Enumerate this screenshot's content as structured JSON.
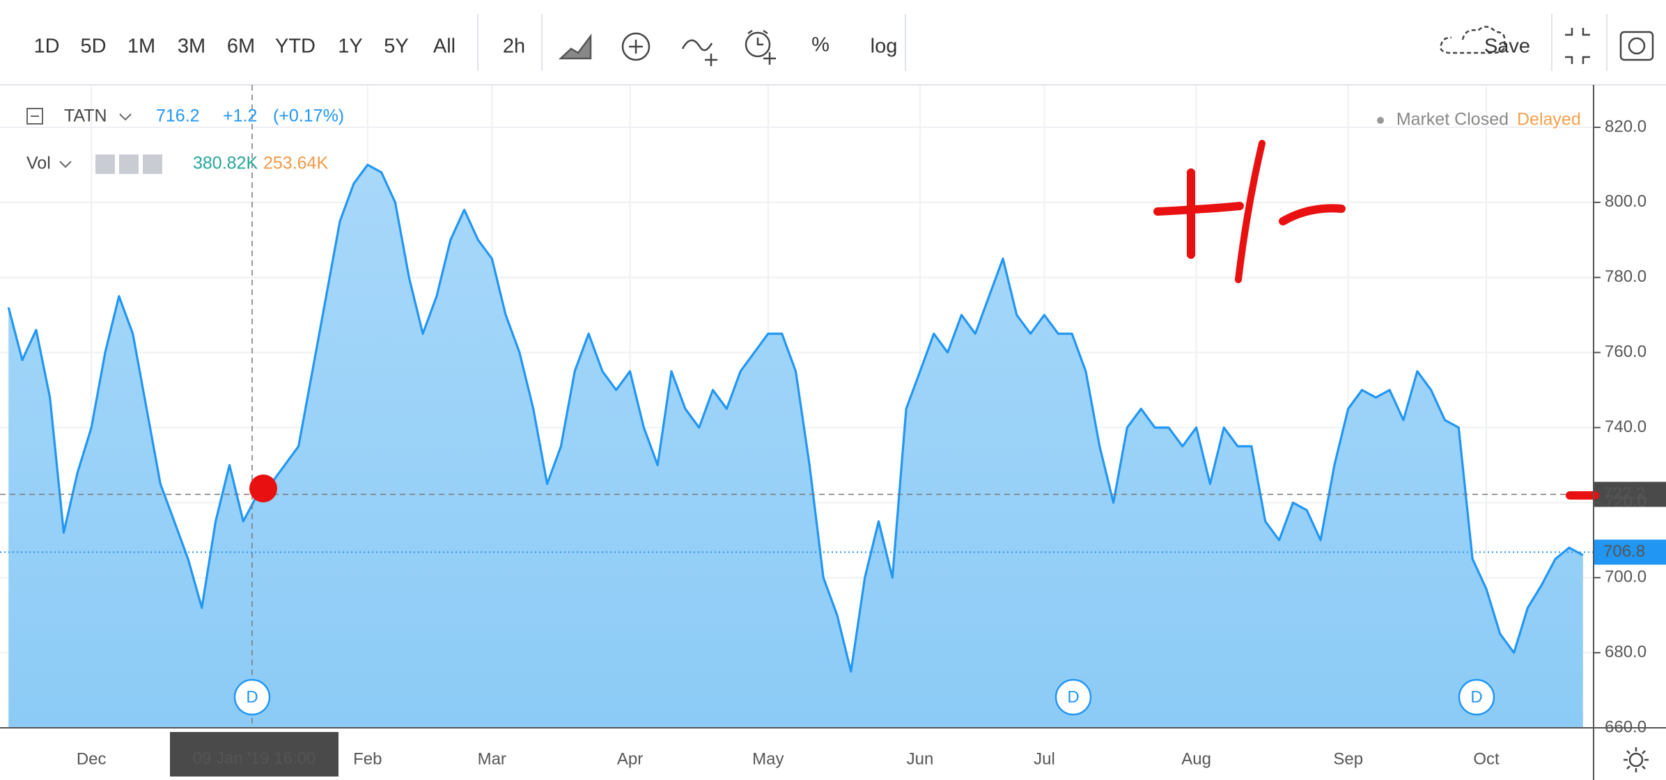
{
  "toolbar": {
    "intervals": [
      "1D",
      "5D",
      "1M",
      "3M",
      "6M",
      "YTD",
      "1Y",
      "5Y",
      "All"
    ],
    "timeframe": "2h",
    "percent": "%",
    "log": "log",
    "save": "Save"
  },
  "legend": {
    "symbol": "TATN",
    "price": "716.2",
    "change": "+1.2",
    "change_pct": "(+0.17%)",
    "status": "Market Closed",
    "delay": "Delayed",
    "volume_label": "Vol",
    "volume": "380.82K",
    "volume_ma": "253.64K"
  },
  "crosshair_label": "09 Jan '19 16:00",
  "dividend_markers": [
    "D",
    "D",
    "D"
  ],
  "chart_data": {
    "type": "area",
    "color": "#2196f3",
    "categories": [
      null,
      null,
      null,
      null,
      null,
      null,
      "Dec",
      null,
      null,
      null,
      null,
      null,
      null,
      null,
      null,
      null,
      null,
      null,
      null,
      null,
      null,
      null,
      null,
      null,
      null,
      null,
      "Feb",
      null,
      null,
      null,
      null,
      null,
      null,
      null,
      null,
      "Mar",
      null,
      null,
      null,
      null,
      null,
      null,
      null,
      null,
      null,
      "Apr",
      null,
      null,
      null,
      null,
      null,
      null,
      null,
      null,
      null,
      "May",
      null,
      null,
      null,
      null,
      null,
      null,
      null,
      null,
      null,
      null,
      "Jun",
      null,
      null,
      null,
      null,
      null,
      null,
      null,
      null,
      "Jul",
      null,
      null,
      null,
      null,
      null,
      null,
      null,
      null,
      null,
      null,
      "Aug",
      null,
      null,
      null,
      null,
      null,
      null,
      null,
      null,
      null,
      null,
      "Sep",
      null,
      null,
      null,
      null,
      null,
      null,
      null,
      null,
      null,
      "Oct",
      null,
      null,
      null,
      null,
      null,
      null,
      null
    ],
    "values": [
      772,
      758,
      766,
      748,
      712,
      728,
      740,
      760,
      775,
      765,
      745,
      725,
      715,
      705,
      692,
      715,
      730,
      715,
      722,
      725,
      730,
      735,
      755,
      775,
      795,
      805,
      810,
      808,
      800,
      780,
      765,
      775,
      790,
      798,
      790,
      785,
      770,
      760,
      745,
      725,
      735,
      755,
      765,
      755,
      750,
      755,
      740,
      730,
      755,
      745,
      740,
      750,
      745,
      755,
      760,
      765,
      765,
      755,
      730,
      700,
      690,
      675,
      700,
      715,
      700,
      745,
      755,
      765,
      760,
      770,
      765,
      775,
      785,
      770,
      765,
      770,
      765,
      765,
      755,
      735,
      720,
      740,
      745,
      740,
      740,
      735,
      740,
      725,
      740,
      735,
      735,
      715,
      710,
      720,
      718,
      710,
      730,
      745,
      750,
      748,
      750,
      742,
      755,
      750,
      742,
      740,
      705,
      697,
      685,
      680,
      692,
      698,
      705,
      708,
      706
    ],
    "ylim": [
      660,
      831.3
    ],
    "yticks": [
      {
        "value": 660,
        "label": "660.0"
      },
      {
        "value": 680,
        "label": "680.0"
      },
      {
        "value": 700,
        "label": "700.0"
      },
      {
        "value": 720,
        "label": "720.0"
      },
      {
        "value": 740,
        "label": "740.0"
      },
      {
        "value": 760,
        "label": "760.0"
      },
      {
        "value": 780,
        "label": "780.0"
      },
      {
        "value": 800,
        "label": "800.0"
      },
      {
        "value": 820,
        "label": "820.0"
      }
    ],
    "crosshair_price": 722.2,
    "last_price": 706.8,
    "grid": true
  }
}
